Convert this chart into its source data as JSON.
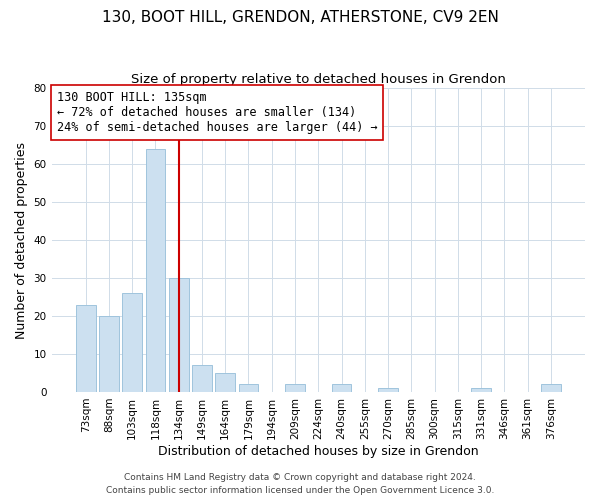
{
  "title": "130, BOOT HILL, GRENDON, ATHERSTONE, CV9 2EN",
  "subtitle": "Size of property relative to detached houses in Grendon",
  "xlabel": "Distribution of detached houses by size in Grendon",
  "ylabel": "Number of detached properties",
  "footer_line1": "Contains HM Land Registry data © Crown copyright and database right 2024.",
  "footer_line2": "Contains public sector information licensed under the Open Government Licence 3.0.",
  "bin_labels": [
    "73sqm",
    "88sqm",
    "103sqm",
    "118sqm",
    "134sqm",
    "149sqm",
    "164sqm",
    "179sqm",
    "194sqm",
    "209sqm",
    "224sqm",
    "240sqm",
    "255sqm",
    "270sqm",
    "285sqm",
    "300sqm",
    "315sqm",
    "331sqm",
    "346sqm",
    "361sqm",
    "376sqm"
  ],
  "bar_values": [
    23,
    20,
    26,
    64,
    30,
    7,
    5,
    2,
    0,
    2,
    0,
    2,
    0,
    1,
    0,
    0,
    0,
    1,
    0,
    0,
    2
  ],
  "bar_color": "#cce0f0",
  "bar_edge_color": "#9fc4dd",
  "vline_x_index": 4,
  "vline_color": "#cc0000",
  "annotation_line1": "130 BOOT HILL: 135sqm",
  "annotation_line2": "← 72% of detached houses are smaller (134)",
  "annotation_line3": "24% of semi-detached houses are larger (44) →",
  "annotation_box_edge_color": "#cc0000",
  "annotation_box_face_color": "#ffffff",
  "ylim": [
    0,
    80
  ],
  "yticks": [
    0,
    10,
    20,
    30,
    40,
    50,
    60,
    70,
    80
  ],
  "background_color": "#ffffff",
  "grid_color": "#d0dce8",
  "title_fontsize": 11,
  "subtitle_fontsize": 9.5,
  "axis_label_fontsize": 9,
  "tick_fontsize": 7.5,
  "annotation_fontsize": 8.5,
  "footer_fontsize": 6.5
}
